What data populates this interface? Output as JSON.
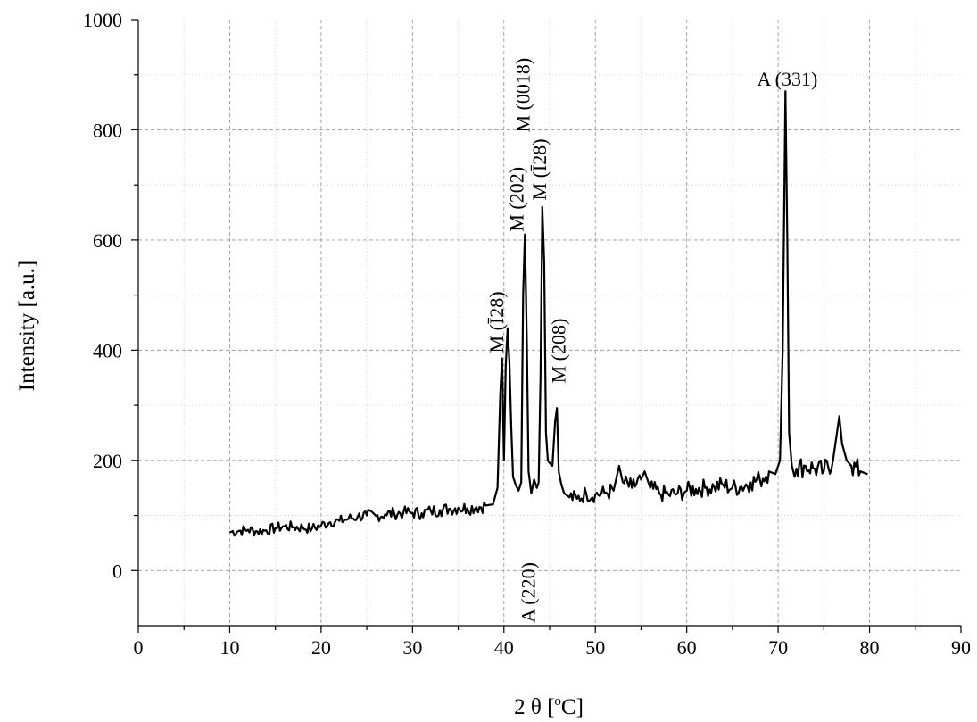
{
  "chart_data": {
    "type": "line",
    "title": "",
    "xlabel": "2 θ [°C]",
    "xlabel_parts": {
      "prefix": "2 θ [",
      "superscript": "o",
      "suffix": "C]"
    },
    "ylabel": "Intensity [a.u.]",
    "xlim": [
      0,
      90
    ],
    "ylim": [
      -100,
      1000
    ],
    "x_ticks": [
      0,
      10,
      20,
      30,
      40,
      50,
      60,
      70,
      80,
      90
    ],
    "y_ticks": [
      0,
      200,
      400,
      600,
      800,
      1000
    ],
    "grid": true,
    "legend": "none",
    "line_color": "#000000",
    "series": [
      {
        "x": [
          10,
          11,
          12,
          13,
          14,
          15,
          16,
          17,
          18,
          19,
          20,
          21,
          22,
          23,
          24,
          25,
          26,
          27,
          28,
          29,
          30,
          31,
          32,
          33,
          34,
          35,
          36,
          37,
          38,
          38.8,
          39.3,
          39.6,
          39.8,
          40.0,
          40.2,
          40.4,
          40.6,
          40.8,
          41.0,
          41.3,
          41.6,
          41.9,
          42.1,
          42.3,
          42.5,
          42.7,
          43.0,
          43.3,
          43.6,
          43.8,
          44.0,
          44.2,
          44.4,
          44.6,
          44.8,
          45.0,
          45.3,
          45.6,
          45.8,
          46.0,
          46.3,
          46.6,
          47,
          48,
          49,
          50,
          51,
          52,
          52.6,
          53,
          54,
          55,
          55.4,
          56,
          57,
          58,
          59,
          60,
          61,
          62,
          63,
          64,
          65,
          66,
          67,
          68,
          69,
          69.7,
          70.2,
          70.5,
          70.8,
          71.0,
          71.2,
          71.5,
          71.8,
          72,
          73,
          74,
          75,
          76,
          76.7,
          77,
          77.5,
          78,
          79,
          79.8
        ],
        "values": [
          70,
          72,
          74,
          71,
          73,
          77,
          80,
          79,
          78,
          76,
          82,
          88,
          90,
          94,
          98,
          100,
          99,
          102,
          104,
          105,
          105,
          104,
          108,
          110,
          112,
          114,
          113,
          115,
          118,
          120,
          150,
          320,
          385,
          200,
          370,
          440,
          380,
          260,
          170,
          155,
          145,
          160,
          500,
          610,
          420,
          180,
          140,
          165,
          150,
          160,
          350,
          660,
          560,
          250,
          200,
          195,
          190,
          270,
          295,
          180,
          155,
          140,
          135,
          130,
          140,
          138,
          140,
          145,
          190,
          160,
          150,
          165,
          180,
          150,
          140,
          138,
          140,
          145,
          148,
          150,
          152,
          155,
          150,
          152,
          160,
          165,
          180,
          175,
          200,
          400,
          870,
          600,
          250,
          190,
          170,
          185,
          190,
          185,
          180,
          200,
          280,
          230,
          200,
          190,
          180,
          175
        ]
      }
    ],
    "annotations": [
      {
        "label": "A (331)",
        "x": 71.0,
        "y": 880,
        "rotate": 0
      },
      {
        "label": "M (Ī28)",
        "x": 39.9,
        "y": 395,
        "rotate": -90
      },
      {
        "label": "M (202)",
        "x": 42.1,
        "y": 615,
        "rotate": -90
      },
      {
        "label": "M (0018)",
        "x": 42.8,
        "y": 795,
        "rotate": -90
      },
      {
        "label": "M (Ī28)",
        "x": 44.6,
        "y": 672,
        "rotate": -90
      },
      {
        "label": "M (208)",
        "x": 46.7,
        "y": 340,
        "rotate": -90
      },
      {
        "label": "A (220)",
        "x": 43.4,
        "y": -95,
        "rotate": -90
      }
    ]
  }
}
